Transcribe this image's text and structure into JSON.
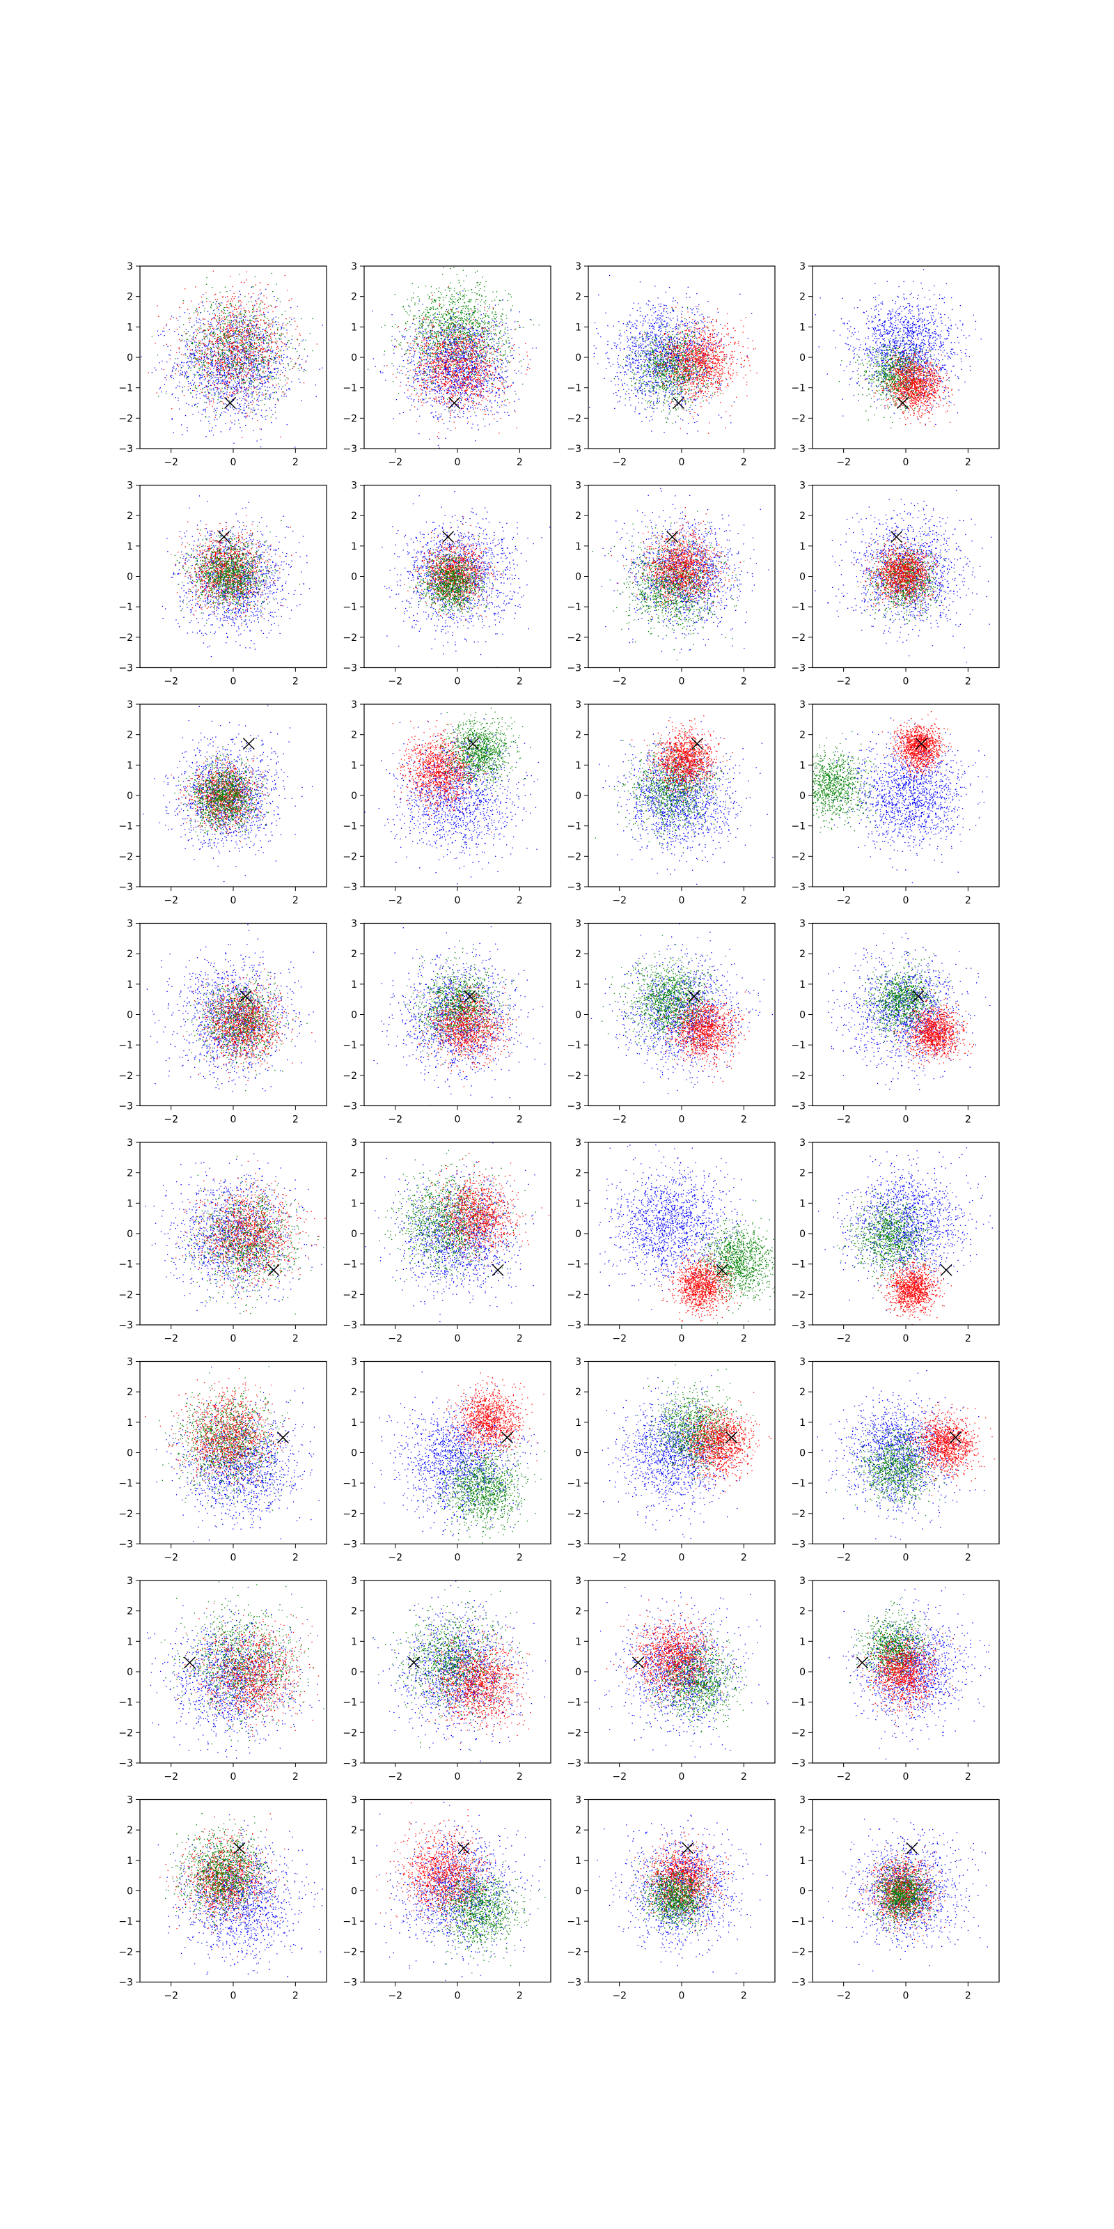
{
  "figure": {
    "rows": 8,
    "cols": 4
  },
  "chart_data": {
    "type": "scatter",
    "layout": "grid",
    "xlim": [
      -3,
      3
    ],
    "ylim": [
      -3,
      3
    ],
    "xticks": [
      -2,
      0,
      2
    ],
    "yticks": [
      -3,
      -2,
      -1,
      0,
      1,
      2,
      3
    ],
    "xtick_labels": [
      "−2",
      "0",
      "2"
    ],
    "ytick_labels": [
      "−3",
      "−2",
      "−1",
      "0",
      "1",
      "2",
      "3"
    ],
    "grid": false,
    "series_colors": {
      "blue": "#0000ff",
      "green": "#008000",
      "red": "#ff0000"
    },
    "marker_color": "#000000",
    "panels": [
      {
        "row": 0,
        "col": 0,
        "marker": [
          -0.1,
          -1.5
        ],
        "clusters": [
          {
            "color": "blue",
            "cx": 0.0,
            "cy": -0.2,
            "s": 0.95,
            "n": 1500
          },
          {
            "color": "green",
            "cx": 0.1,
            "cy": 0.3,
            "s": 0.85,
            "n": 900
          },
          {
            "color": "red",
            "cx": 0.1,
            "cy": 0.3,
            "s": 0.85,
            "n": 900
          }
        ]
      },
      {
        "row": 0,
        "col": 1,
        "marker": [
          -0.1,
          -1.5
        ],
        "clusters": [
          {
            "color": "green",
            "cx": 0.0,
            "cy": 0.8,
            "s": 0.8,
            "n": 1400
          },
          {
            "color": "blue",
            "cx": 0.0,
            "cy": -0.3,
            "s": 0.85,
            "n": 1400
          },
          {
            "color": "red",
            "cx": 0.0,
            "cy": -0.3,
            "s": 0.7,
            "n": 1100
          }
        ]
      },
      {
        "row": 0,
        "col": 2,
        "marker": [
          -0.1,
          -1.5
        ],
        "clusters": [
          {
            "color": "blue",
            "cx": -0.5,
            "cy": 0.0,
            "s": 0.85,
            "n": 1400
          },
          {
            "color": "green",
            "cx": -0.3,
            "cy": -0.3,
            "s": 0.6,
            "n": 900
          },
          {
            "color": "red",
            "cx": 0.6,
            "cy": -0.1,
            "s": 0.6,
            "n": 1100
          }
        ]
      },
      {
        "row": 0,
        "col": 3,
        "marker": [
          -0.1,
          -1.5
        ],
        "clusters": [
          {
            "color": "blue",
            "cx": 0.0,
            "cy": 0.3,
            "s": 0.8,
            "n": 1500
          },
          {
            "color": "green",
            "cx": -0.3,
            "cy": -0.6,
            "s": 0.5,
            "n": 800
          },
          {
            "color": "red",
            "cx": 0.3,
            "cy": -0.9,
            "s": 0.45,
            "n": 1100
          }
        ]
      },
      {
        "row": 1,
        "col": 0,
        "marker": [
          -0.3,
          1.3
        ],
        "clusters": [
          {
            "color": "blue",
            "cx": 0.0,
            "cy": -0.1,
            "s": 0.85,
            "n": 1300
          },
          {
            "color": "red",
            "cx": -0.2,
            "cy": 0.2,
            "s": 0.6,
            "n": 1000
          },
          {
            "color": "green",
            "cx": -0.2,
            "cy": 0.1,
            "s": 0.55,
            "n": 1100
          }
        ]
      },
      {
        "row": 1,
        "col": 1,
        "marker": [
          -0.3,
          1.3
        ],
        "clusters": [
          {
            "color": "blue",
            "cx": 0.0,
            "cy": 0.0,
            "s": 0.9,
            "n": 1300
          },
          {
            "color": "red",
            "cx": -0.1,
            "cy": 0.1,
            "s": 0.5,
            "n": 1000
          },
          {
            "color": "green",
            "cx": -0.2,
            "cy": -0.2,
            "s": 0.45,
            "n": 1000
          }
        ]
      },
      {
        "row": 1,
        "col": 2,
        "marker": [
          -0.3,
          1.3
        ],
        "clusters": [
          {
            "color": "blue",
            "cx": 0.1,
            "cy": 0.1,
            "s": 0.85,
            "n": 1300
          },
          {
            "color": "green",
            "cx": -0.3,
            "cy": -0.3,
            "s": 0.7,
            "n": 1100
          },
          {
            "color": "red",
            "cx": 0.0,
            "cy": 0.3,
            "s": 0.55,
            "n": 1100
          }
        ]
      },
      {
        "row": 1,
        "col": 3,
        "marker": [
          -0.3,
          1.3
        ],
        "clusters": [
          {
            "color": "blue",
            "cx": 0.1,
            "cy": 0.1,
            "s": 0.9,
            "n": 1300
          },
          {
            "color": "green",
            "cx": 0.0,
            "cy": -0.1,
            "s": 0.5,
            "n": 800
          },
          {
            "color": "red",
            "cx": -0.1,
            "cy": 0.1,
            "s": 0.45,
            "n": 1100
          }
        ]
      },
      {
        "row": 2,
        "col": 0,
        "marker": [
          0.5,
          1.7
        ],
        "clusters": [
          {
            "color": "blue",
            "cx": -0.2,
            "cy": 0.0,
            "s": 0.85,
            "n": 1300
          },
          {
            "color": "red",
            "cx": -0.3,
            "cy": 0.0,
            "s": 0.5,
            "n": 900
          },
          {
            "color": "green",
            "cx": -0.3,
            "cy": 0.0,
            "s": 0.5,
            "n": 1100
          }
        ]
      },
      {
        "row": 2,
        "col": 1,
        "marker": [
          0.5,
          1.7
        ],
        "clusters": [
          {
            "color": "blue",
            "cx": 0.0,
            "cy": 0.0,
            "s": 0.9,
            "n": 1300
          },
          {
            "color": "red",
            "cx": -0.6,
            "cy": 0.8,
            "s": 0.55,
            "n": 1100
          },
          {
            "color": "green",
            "cx": 0.7,
            "cy": 1.4,
            "s": 0.5,
            "n": 1000
          }
        ]
      },
      {
        "row": 2,
        "col": 2,
        "marker": [
          0.5,
          1.7
        ],
        "clusters": [
          {
            "color": "blue",
            "cx": -0.1,
            "cy": -0.1,
            "s": 0.85,
            "n": 1400
          },
          {
            "color": "green",
            "cx": -0.3,
            "cy": 0.2,
            "s": 0.65,
            "n": 900
          },
          {
            "color": "red",
            "cx": 0.1,
            "cy": 1.2,
            "s": 0.45,
            "n": 1100
          }
        ]
      },
      {
        "row": 2,
        "col": 3,
        "marker": [
          0.5,
          1.7
        ],
        "clusters": [
          {
            "color": "blue",
            "cx": 0.1,
            "cy": 0.0,
            "s": 0.85,
            "n": 1400
          },
          {
            "color": "green",
            "cx": -2.4,
            "cy": 0.3,
            "s": 0.55,
            "n": 1000
          },
          {
            "color": "red",
            "cx": 0.4,
            "cy": 1.6,
            "s": 0.35,
            "n": 1100
          }
        ]
      },
      {
        "row": 3,
        "col": 0,
        "marker": [
          0.4,
          0.6
        ],
        "clusters": [
          {
            "color": "blue",
            "cx": 0.0,
            "cy": -0.1,
            "s": 0.9,
            "n": 1300
          },
          {
            "color": "green",
            "cx": 0.2,
            "cy": -0.2,
            "s": 0.6,
            "n": 900
          },
          {
            "color": "red",
            "cx": 0.3,
            "cy": -0.3,
            "s": 0.6,
            "n": 1000
          }
        ]
      },
      {
        "row": 3,
        "col": 1,
        "marker": [
          0.4,
          0.6
        ],
        "clusters": [
          {
            "color": "blue",
            "cx": 0.0,
            "cy": -0.1,
            "s": 0.9,
            "n": 1300
          },
          {
            "color": "green",
            "cx": 0.0,
            "cy": 0.3,
            "s": 0.6,
            "n": 1000
          },
          {
            "color": "red",
            "cx": 0.3,
            "cy": -0.4,
            "s": 0.55,
            "n": 1000
          }
        ]
      },
      {
        "row": 3,
        "col": 2,
        "marker": [
          0.4,
          0.6
        ],
        "clusters": [
          {
            "color": "blue",
            "cx": 0.0,
            "cy": 0.0,
            "s": 0.9,
            "n": 1300
          },
          {
            "color": "green",
            "cx": -0.4,
            "cy": 0.5,
            "s": 0.6,
            "n": 1100
          },
          {
            "color": "red",
            "cx": 0.7,
            "cy": -0.5,
            "s": 0.5,
            "n": 1100
          }
        ]
      },
      {
        "row": 3,
        "col": 3,
        "marker": [
          0.4,
          0.6
        ],
        "clusters": [
          {
            "color": "blue",
            "cx": 0.0,
            "cy": 0.1,
            "s": 0.9,
            "n": 1300
          },
          {
            "color": "green",
            "cx": -0.1,
            "cy": 0.5,
            "s": 0.5,
            "n": 900
          },
          {
            "color": "red",
            "cx": 0.9,
            "cy": -0.6,
            "s": 0.42,
            "n": 1100
          }
        ]
      },
      {
        "row": 4,
        "col": 0,
        "marker": [
          1.3,
          -1.2
        ],
        "clusters": [
          {
            "color": "blue",
            "cx": 0.0,
            "cy": 0.0,
            "s": 0.95,
            "n": 1300
          },
          {
            "color": "green",
            "cx": 0.4,
            "cy": -0.2,
            "s": 0.75,
            "n": 1000
          },
          {
            "color": "red",
            "cx": 0.5,
            "cy": 0.0,
            "s": 0.75,
            "n": 1000
          }
        ]
      },
      {
        "row": 4,
        "col": 1,
        "marker": [
          1.3,
          -1.2
        ],
        "clusters": [
          {
            "color": "blue",
            "cx": 0.0,
            "cy": -0.1,
            "s": 0.9,
            "n": 1300
          },
          {
            "color": "green",
            "cx": -0.4,
            "cy": 0.4,
            "s": 0.75,
            "n": 1100
          },
          {
            "color": "red",
            "cx": 0.6,
            "cy": 0.6,
            "s": 0.6,
            "n": 1000
          }
        ]
      },
      {
        "row": 4,
        "col": 2,
        "marker": [
          1.3,
          -1.2
        ],
        "clusters": [
          {
            "color": "blue",
            "cx": -0.3,
            "cy": 0.3,
            "s": 0.9,
            "n": 1400
          },
          {
            "color": "green",
            "cx": 1.8,
            "cy": -0.9,
            "s": 0.55,
            "n": 1100
          },
          {
            "color": "red",
            "cx": 0.6,
            "cy": -1.7,
            "s": 0.42,
            "n": 1100
          }
        ]
      },
      {
        "row": 4,
        "col": 3,
        "marker": [
          1.3,
          -1.2
        ],
        "clusters": [
          {
            "color": "blue",
            "cx": 0.0,
            "cy": 0.3,
            "s": 0.9,
            "n": 1400
          },
          {
            "color": "green",
            "cx": -0.5,
            "cy": -0.1,
            "s": 0.55,
            "n": 900
          },
          {
            "color": "red",
            "cx": 0.2,
            "cy": -1.8,
            "s": 0.38,
            "n": 1100
          }
        ]
      },
      {
        "row": 5,
        "col": 0,
        "marker": [
          1.6,
          0.5
        ],
        "clusters": [
          {
            "color": "blue",
            "cx": 0.2,
            "cy": -0.4,
            "s": 0.9,
            "n": 1300
          },
          {
            "color": "green",
            "cx": -0.2,
            "cy": 0.4,
            "s": 0.75,
            "n": 1100
          },
          {
            "color": "red",
            "cx": -0.2,
            "cy": 0.6,
            "s": 0.7,
            "n": 1000
          }
        ]
      },
      {
        "row": 5,
        "col": 1,
        "marker": [
          1.6,
          0.5
        ],
        "clusters": [
          {
            "color": "blue",
            "cx": 0.0,
            "cy": -0.3,
            "s": 0.9,
            "n": 1400
          },
          {
            "color": "green",
            "cx": 0.8,
            "cy": -1.2,
            "s": 0.6,
            "n": 1100
          },
          {
            "color": "red",
            "cx": 1.0,
            "cy": 1.1,
            "s": 0.5,
            "n": 1100
          }
        ]
      },
      {
        "row": 5,
        "col": 2,
        "marker": [
          1.6,
          0.5
        ],
        "clusters": [
          {
            "color": "blue",
            "cx": -0.3,
            "cy": 0.0,
            "s": 0.85,
            "n": 1300
          },
          {
            "color": "green",
            "cx": 0.4,
            "cy": 0.8,
            "s": 0.6,
            "n": 1000
          },
          {
            "color": "red",
            "cx": 1.2,
            "cy": 0.3,
            "s": 0.5,
            "n": 1100
          }
        ]
      },
      {
        "row": 5,
        "col": 3,
        "marker": [
          1.6,
          0.5
        ],
        "clusters": [
          {
            "color": "blue",
            "cx": -0.2,
            "cy": 0.0,
            "s": 0.85,
            "n": 1400
          },
          {
            "color": "green",
            "cx": -0.3,
            "cy": -0.5,
            "s": 0.55,
            "n": 900
          },
          {
            "color": "red",
            "cx": 1.3,
            "cy": 0.3,
            "s": 0.45,
            "n": 1100
          }
        ]
      },
      {
        "row": 6,
        "col": 0,
        "marker": [
          -1.4,
          0.3
        ],
        "clusters": [
          {
            "color": "blue",
            "cx": 0.0,
            "cy": -0.2,
            "s": 0.95,
            "n": 1300
          },
          {
            "color": "green",
            "cx": 0.3,
            "cy": 0.3,
            "s": 0.85,
            "n": 1000
          },
          {
            "color": "red",
            "cx": 0.6,
            "cy": 0.0,
            "s": 0.75,
            "n": 1000
          }
        ]
      },
      {
        "row": 6,
        "col": 1,
        "marker": [
          -1.4,
          0.3
        ],
        "clusters": [
          {
            "color": "blue",
            "cx": 0.0,
            "cy": 0.0,
            "s": 0.9,
            "n": 1300
          },
          {
            "color": "green",
            "cx": -0.2,
            "cy": 0.4,
            "s": 0.75,
            "n": 1000
          },
          {
            "color": "red",
            "cx": 0.7,
            "cy": -0.4,
            "s": 0.65,
            "n": 1100
          }
        ]
      },
      {
        "row": 6,
        "col": 2,
        "marker": [
          -1.4,
          0.3
        ],
        "clusters": [
          {
            "color": "blue",
            "cx": 0.0,
            "cy": 0.0,
            "s": 0.9,
            "n": 1300
          },
          {
            "color": "green",
            "cx": 0.5,
            "cy": -0.3,
            "s": 0.6,
            "n": 1000
          },
          {
            "color": "red",
            "cx": -0.3,
            "cy": 0.5,
            "s": 0.6,
            "n": 1100
          }
        ]
      },
      {
        "row": 6,
        "col": 3,
        "marker": [
          -1.4,
          0.3
        ],
        "clusters": [
          {
            "color": "blue",
            "cx": 0.2,
            "cy": 0.1,
            "s": 0.85,
            "n": 1300
          },
          {
            "color": "green",
            "cx": -0.4,
            "cy": 0.8,
            "s": 0.5,
            "n": 900
          },
          {
            "color": "red",
            "cx": -0.1,
            "cy": 0.0,
            "s": 0.5,
            "n": 1100
          }
        ]
      },
      {
        "row": 7,
        "col": 0,
        "marker": [
          0.2,
          1.4
        ],
        "clusters": [
          {
            "color": "blue",
            "cx": 0.2,
            "cy": -0.3,
            "s": 0.9,
            "n": 1300
          },
          {
            "color": "red",
            "cx": -0.3,
            "cy": 0.4,
            "s": 0.65,
            "n": 1000
          },
          {
            "color": "green",
            "cx": -0.3,
            "cy": 0.6,
            "s": 0.65,
            "n": 1100
          }
        ]
      },
      {
        "row": 7,
        "col": 1,
        "marker": [
          0.2,
          1.4
        ],
        "clusters": [
          {
            "color": "blue",
            "cx": 0.0,
            "cy": 0.0,
            "s": 0.9,
            "n": 1300
          },
          {
            "color": "red",
            "cx": -0.5,
            "cy": 0.6,
            "s": 0.65,
            "n": 1100
          },
          {
            "color": "green",
            "cx": 0.7,
            "cy": -0.6,
            "s": 0.6,
            "n": 1000
          }
        ]
      },
      {
        "row": 7,
        "col": 2,
        "marker": [
          0.2,
          1.4
        ],
        "clusters": [
          {
            "color": "blue",
            "cx": 0.0,
            "cy": 0.0,
            "s": 0.85,
            "n": 1300
          },
          {
            "color": "red",
            "cx": 0.0,
            "cy": 0.4,
            "s": 0.55,
            "n": 1100
          },
          {
            "color": "green",
            "cx": -0.2,
            "cy": -0.2,
            "s": 0.45,
            "n": 1000
          }
        ]
      },
      {
        "row": 7,
        "col": 3,
        "marker": [
          0.2,
          1.4
        ],
        "clusters": [
          {
            "color": "blue",
            "cx": 0.0,
            "cy": 0.0,
            "s": 0.85,
            "n": 1300
          },
          {
            "color": "red",
            "cx": -0.1,
            "cy": 0.0,
            "s": 0.5,
            "n": 1100
          },
          {
            "color": "green",
            "cx": -0.1,
            "cy": -0.1,
            "s": 0.42,
            "n": 1000
          }
        ]
      }
    ]
  }
}
